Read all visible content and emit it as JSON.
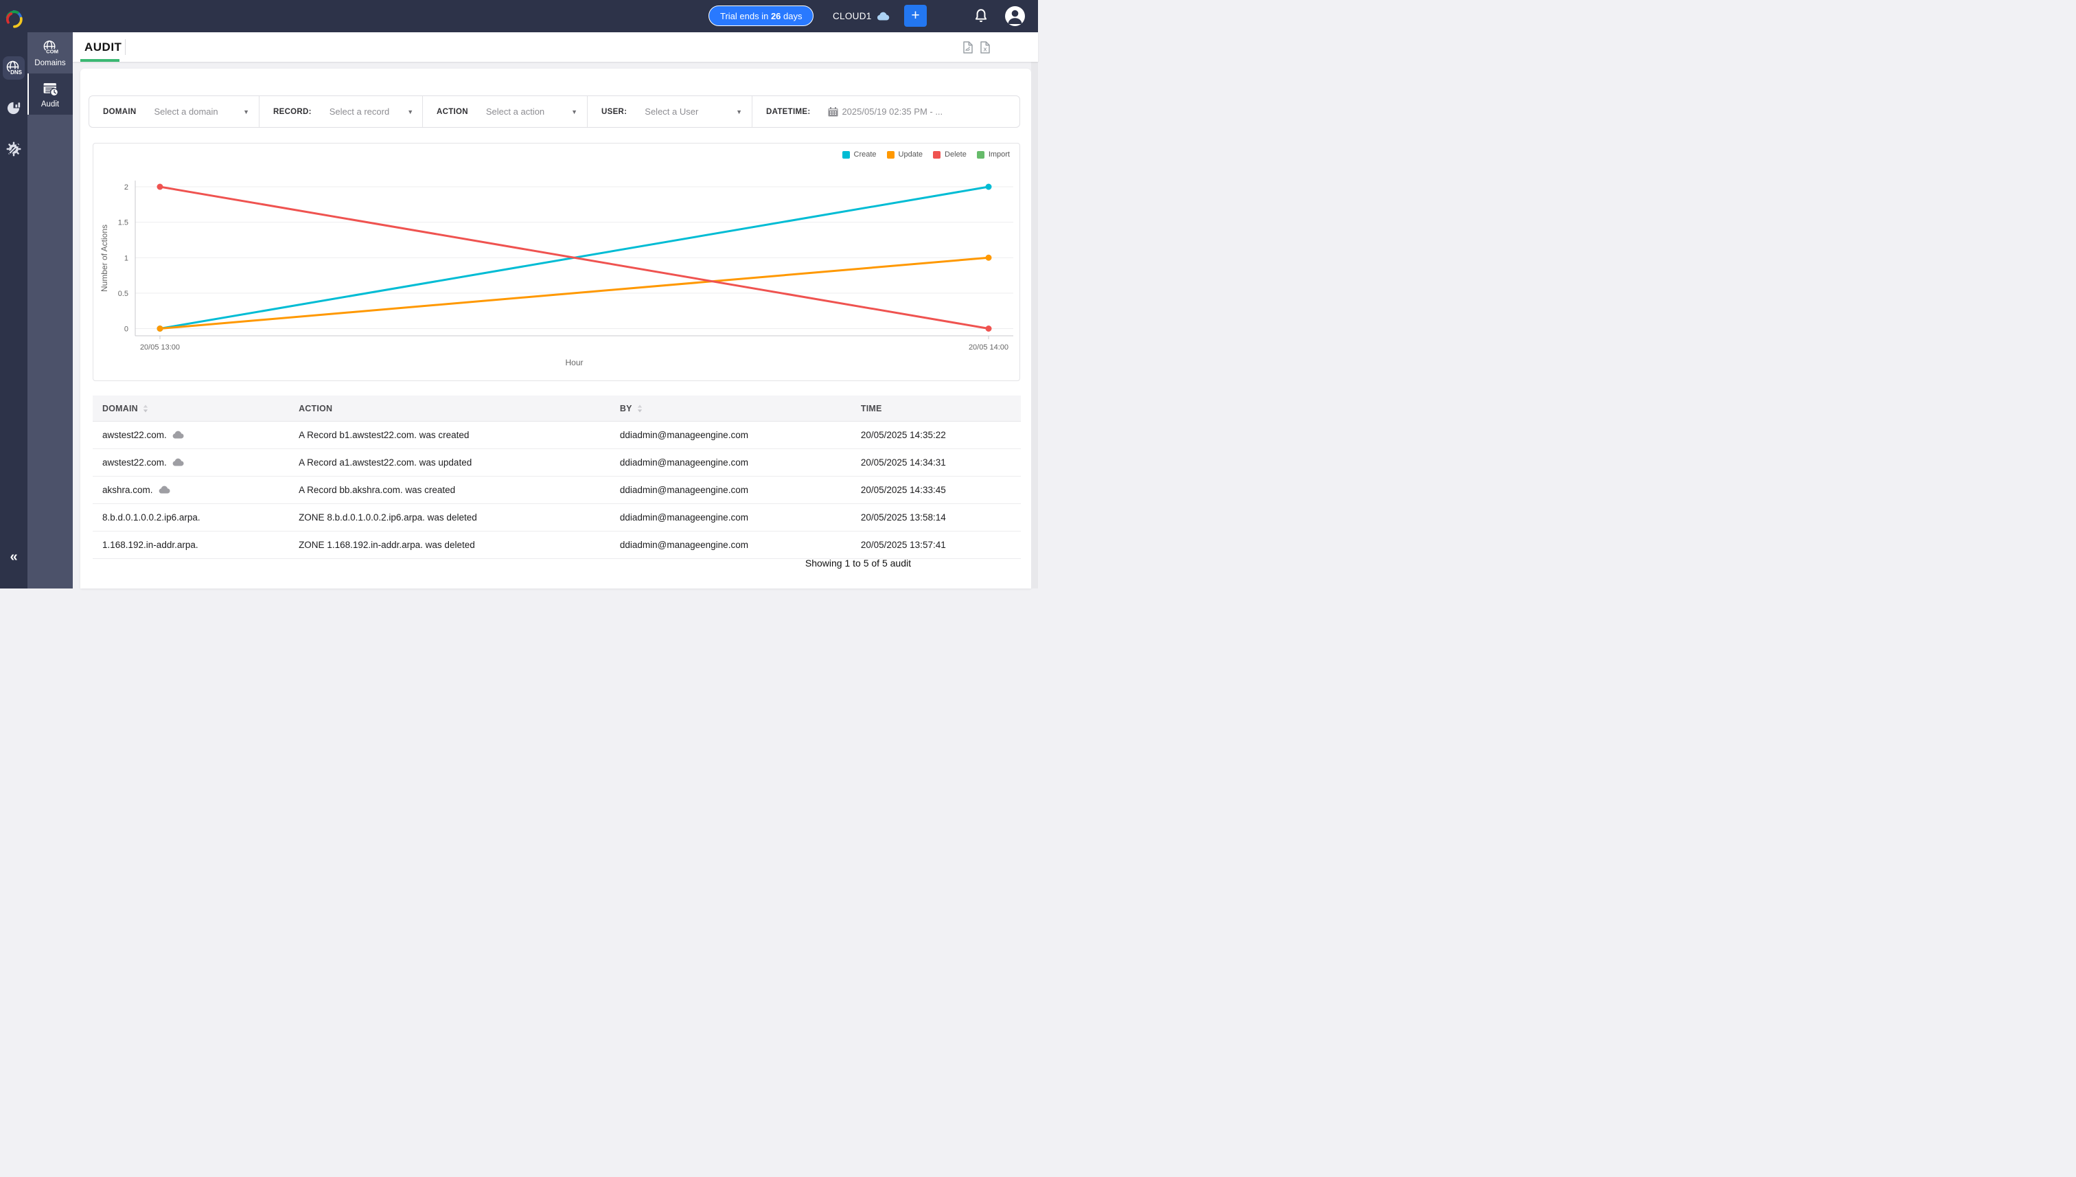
{
  "navbar": {
    "trial": {
      "prefix": "Trial ends in ",
      "days": "26",
      "suffix": " days"
    },
    "org_name": "CLOUD1",
    "plus_label": "+",
    "icons": [
      "cloud-icon",
      "plus-icon",
      "bell-icon",
      "avatar-icon"
    ]
  },
  "sidebar1": {
    "icons": [
      "app-logo",
      "dns-globe-icon",
      "analytics-pie-icon",
      "settings-gear-icon",
      "collapse-chevrons-icon"
    ],
    "collapse_glyph": "«"
  },
  "sidebar2": {
    "items": [
      {
        "label": "Domains",
        "icon": "globe-com-icon",
        "active": false,
        "badge": "COM"
      },
      {
        "label": "Audit",
        "icon": "audit-list-clock-icon",
        "active": true
      }
    ]
  },
  "header": {
    "title": "AUDIT",
    "export_icons": [
      "pdf-file-icon",
      "excel-file-icon"
    ]
  },
  "filters": [
    {
      "label": "DOMAIN",
      "value": "Select a domain",
      "caret": true
    },
    {
      "label": "RECORD:",
      "value": "Select a record",
      "caret": true
    },
    {
      "label": "ACTION",
      "value": "Select a action",
      "caret": true
    },
    {
      "label": "USER:",
      "value": "Select a User",
      "caret": true
    },
    {
      "label": "DATETIME:",
      "value": "2025/05/19 02:35 PM - ...",
      "caret": false,
      "icon": "calendar-icon"
    }
  ],
  "chart_data": {
    "type": "line",
    "categories": [
      "20/05 13:00",
      "20/05 14:00"
    ],
    "series": [
      {
        "name": "Create",
        "color": "#00bcd4",
        "values": [
          0,
          2
        ]
      },
      {
        "name": "Update",
        "color": "#ff9800",
        "values": [
          0,
          1
        ]
      },
      {
        "name": "Delete",
        "color": "#ef5350",
        "values": [
          2,
          0
        ]
      },
      {
        "name": "Import",
        "color": "#66bb6a",
        "values": []
      }
    ],
    "title": "",
    "xlabel": "Hour",
    "ylabel": "Number of Actions",
    "ylim": [
      0,
      2
    ],
    "yticks": [
      0,
      0.5,
      1,
      1.5,
      2
    ],
    "grid": true,
    "legend_position": "top-right"
  },
  "table": {
    "columns": [
      {
        "label": "DOMAIN",
        "sortable": true,
        "width": "21%"
      },
      {
        "label": "ACTION",
        "sortable": false,
        "width": "35%"
      },
      {
        "label": "BY",
        "sortable": true,
        "width": "26%"
      },
      {
        "label": "TIME",
        "sortable": false,
        "width": "18%"
      }
    ],
    "rows": [
      {
        "domain": "awstest22.com.",
        "cloud": true,
        "action": "A Record b1.awstest22.com. was created",
        "by": "ddiadmin@manageengine.com",
        "time": "20/05/2025 14:35:22"
      },
      {
        "domain": "awstest22.com.",
        "cloud": true,
        "action": "A Record a1.awstest22.com. was updated",
        "by": "ddiadmin@manageengine.com",
        "time": "20/05/2025 14:34:31"
      },
      {
        "domain": "akshra.com.",
        "cloud": true,
        "action": "A Record bb.akshra.com. was created",
        "by": "ddiadmin@manageengine.com",
        "time": "20/05/2025 14:33:45"
      },
      {
        "domain": "8.b.d.0.1.0.0.2.ip6.arpa.",
        "cloud": false,
        "action": "ZONE 8.b.d.0.1.0.0.2.ip6.arpa. was deleted",
        "by": "ddiadmin@manageengine.com",
        "time": "20/05/2025 13:58:14"
      },
      {
        "domain": "1.168.192.in-addr.arpa.",
        "cloud": false,
        "action": "ZONE 1.168.192.in-addr.arpa. was deleted",
        "by": "ddiadmin@manageengine.com",
        "time": "20/05/2025 13:57:41"
      }
    ]
  },
  "footer": {
    "summary": "Showing 1 to 5 of 5 audit"
  }
}
